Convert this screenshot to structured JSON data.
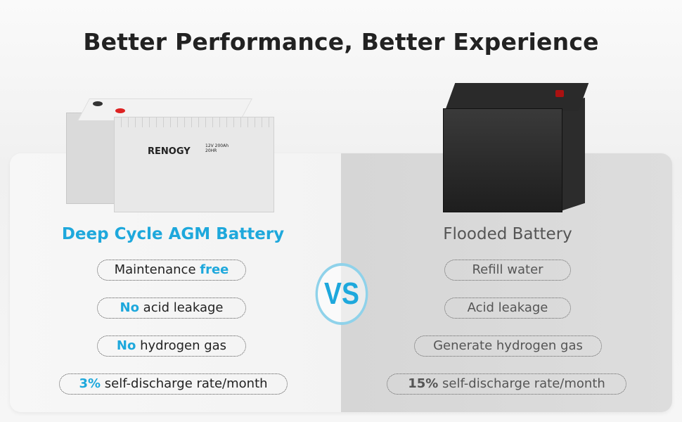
{
  "title": "Better Performance, Better Experience",
  "left": {
    "heading": "Deep Cycle AGM Battery",
    "battery_brand": "RENOGY",
    "battery_spec": "12V 200Ah 20HR",
    "features": [
      {
        "highlight": "",
        "text": "Maintenance ",
        "highlight_after": "free"
      },
      {
        "highlight": "No",
        "text": " acid leakage"
      },
      {
        "highlight": "No",
        "text": " hydrogen gas"
      },
      {
        "highlight": "3%",
        "text": " self-discharge rate/month"
      }
    ]
  },
  "vs_label": "VS",
  "right": {
    "heading": "Flooded Battery",
    "features": [
      {
        "text": "Refill water"
      },
      {
        "text": "Acid leakage"
      },
      {
        "text": "Generate hydrogen gas"
      },
      {
        "highlight": "15%",
        "text": " self-discharge rate/month"
      }
    ]
  },
  "colors": {
    "accent": "#1ea8dc",
    "text_dark": "#222222",
    "text_muted": "#555555"
  }
}
